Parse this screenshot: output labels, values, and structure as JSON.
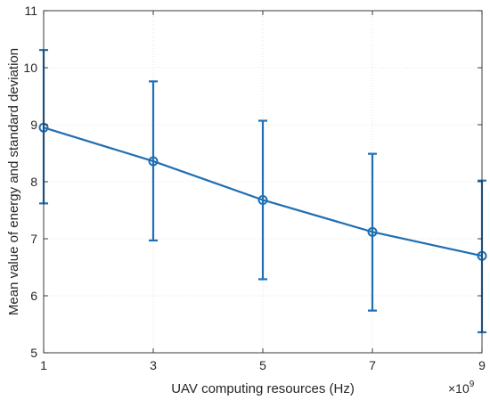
{
  "chart_data": {
    "type": "line",
    "xlabel": "UAV computing resources (Hz)",
    "ylabel": "Mean value of energy and standard deviation",
    "x_multiplier_base": "×10",
    "x_multiplier_exponent": "9",
    "x": [
      1,
      3,
      5,
      7,
      9
    ],
    "xticks": [
      1,
      3,
      5,
      7,
      9
    ],
    "xlim": [
      1,
      9
    ],
    "ylim": [
      5,
      11
    ],
    "yticks": [
      5,
      6,
      7,
      8,
      9,
      10,
      11
    ],
    "grid": true,
    "series": [
      {
        "values": [
          8.95,
          8.36,
          7.68,
          7.12,
          6.7
        ],
        "err_lower": [
          7.62,
          6.97,
          6.29,
          5.74,
          5.36
        ],
        "err_upper": [
          10.31,
          9.76,
          9.07,
          8.49,
          8.02
        ],
        "color": "#1f6fb4",
        "marker": "circle"
      }
    ]
  }
}
